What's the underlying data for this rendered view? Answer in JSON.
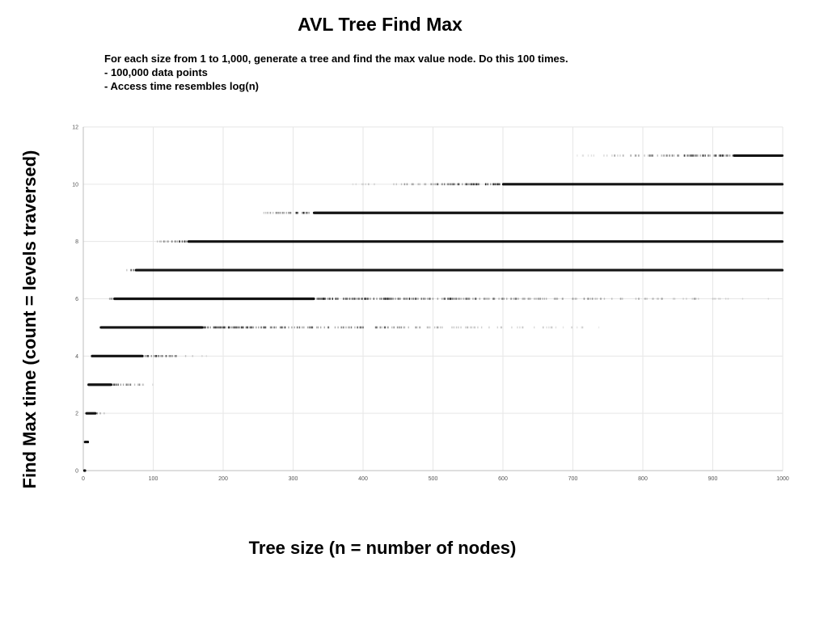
{
  "title": "AVL Tree Find Max",
  "description": {
    "line1": "For each size from 1 to 1,000, generate a tree and find the max value node. Do this 100 times.",
    "bullets": [
      "-  100,000 data points",
      "-  Access time resembles log(n)"
    ]
  },
  "chart_data": {
    "type": "scatter",
    "title": "AVL Tree Find Max",
    "xlabel": "Tree size (n = number of nodes)",
    "ylabel": "Find Max time (count = levels traversed)",
    "xlim": [
      0,
      1000
    ],
    "ylim": [
      0,
      12
    ],
    "x_ticks": [
      0,
      100,
      200,
      300,
      400,
      500,
      600,
      700,
      800,
      900,
      1000
    ],
    "y_ticks": [
      0,
      2,
      4,
      6,
      8,
      10,
      12
    ],
    "grid": true,
    "point_color": "#000000",
    "series": [
      {
        "y": 0,
        "x_range": [
          1,
          3
        ],
        "dense_range": [
          1,
          3
        ]
      },
      {
        "y": 1,
        "x_range": [
          2,
          8
        ],
        "dense_range": [
          2,
          7
        ]
      },
      {
        "y": 2,
        "x_range": [
          4,
          35
        ],
        "dense_range": [
          4,
          18
        ]
      },
      {
        "y": 3,
        "x_range": [
          7,
          105
        ],
        "dense_range": [
          7,
          40
        ]
      },
      {
        "y": 4,
        "x_range": [
          12,
          180
        ],
        "dense_range": [
          12,
          85
        ]
      },
      {
        "y": 5,
        "x_range": [
          20,
          740
        ],
        "dense_range": [
          25,
          170
        ]
      },
      {
        "y": 6,
        "x_range": [
          33,
          1000
        ],
        "dense_range": [
          44,
          330
        ]
      },
      {
        "y": 7,
        "x_range": [
          54,
          1000
        ],
        "dense_range": [
          75,
          1000
        ]
      },
      {
        "y": 8,
        "x_range": [
          88,
          1000
        ],
        "dense_range": [
          150,
          1000
        ]
      },
      {
        "y": 9,
        "x_range": [
          225,
          1000
        ],
        "dense_range": [
          330,
          1000
        ]
      },
      {
        "y": 10,
        "x_range": [
          380,
          1000
        ],
        "dense_range": [
          600,
          1000
        ]
      },
      {
        "y": 11,
        "x_range": [
          700,
          1000
        ],
        "dense_range": [
          930,
          1000
        ]
      }
    ]
  }
}
